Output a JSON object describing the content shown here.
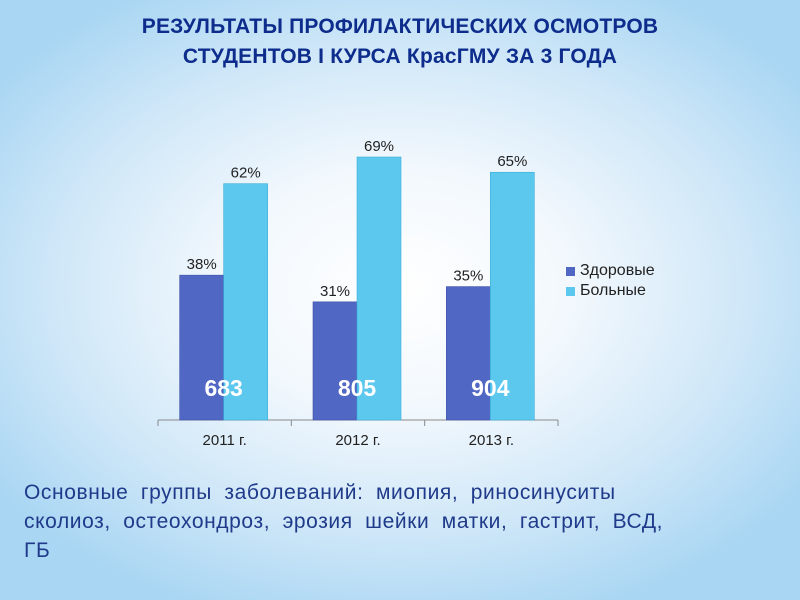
{
  "title": {
    "line1": "РЕЗУЛЬТАТЫ ПРОФИЛАКТИЧЕСКИХ ОСМОТРОВ",
    "line2": "СТУДЕНТОВ I КУРСА КрасГМУ ЗА 3 ГОДА"
  },
  "chart_data": {
    "type": "bar",
    "categories": [
      "2011 г.",
      "2012 г.",
      "2013 г."
    ],
    "series": [
      {
        "name": "Здоровые",
        "values": [
          38,
          31,
          35
        ],
        "labels": [
          "38%",
          "31%",
          "35%"
        ],
        "color": "#5067c4"
      },
      {
        "name": "Больные",
        "values": [
          62,
          69,
          65
        ],
        "labels": [
          "62%",
          "69%",
          "65%"
        ],
        "color": "#5cc8ee"
      }
    ],
    "totals": [
      "683",
      "805",
      "904"
    ],
    "ylim": [
      0,
      70
    ],
    "legend_position": "right",
    "grid": false
  },
  "caption": {
    "line1": "Основные группы заболеваний: миопия, риносинуситы",
    "line2": "сколиоз, остеохондроз, эрозия шейки матки, гастрит, ВСД,",
    "line3": "ГБ"
  }
}
